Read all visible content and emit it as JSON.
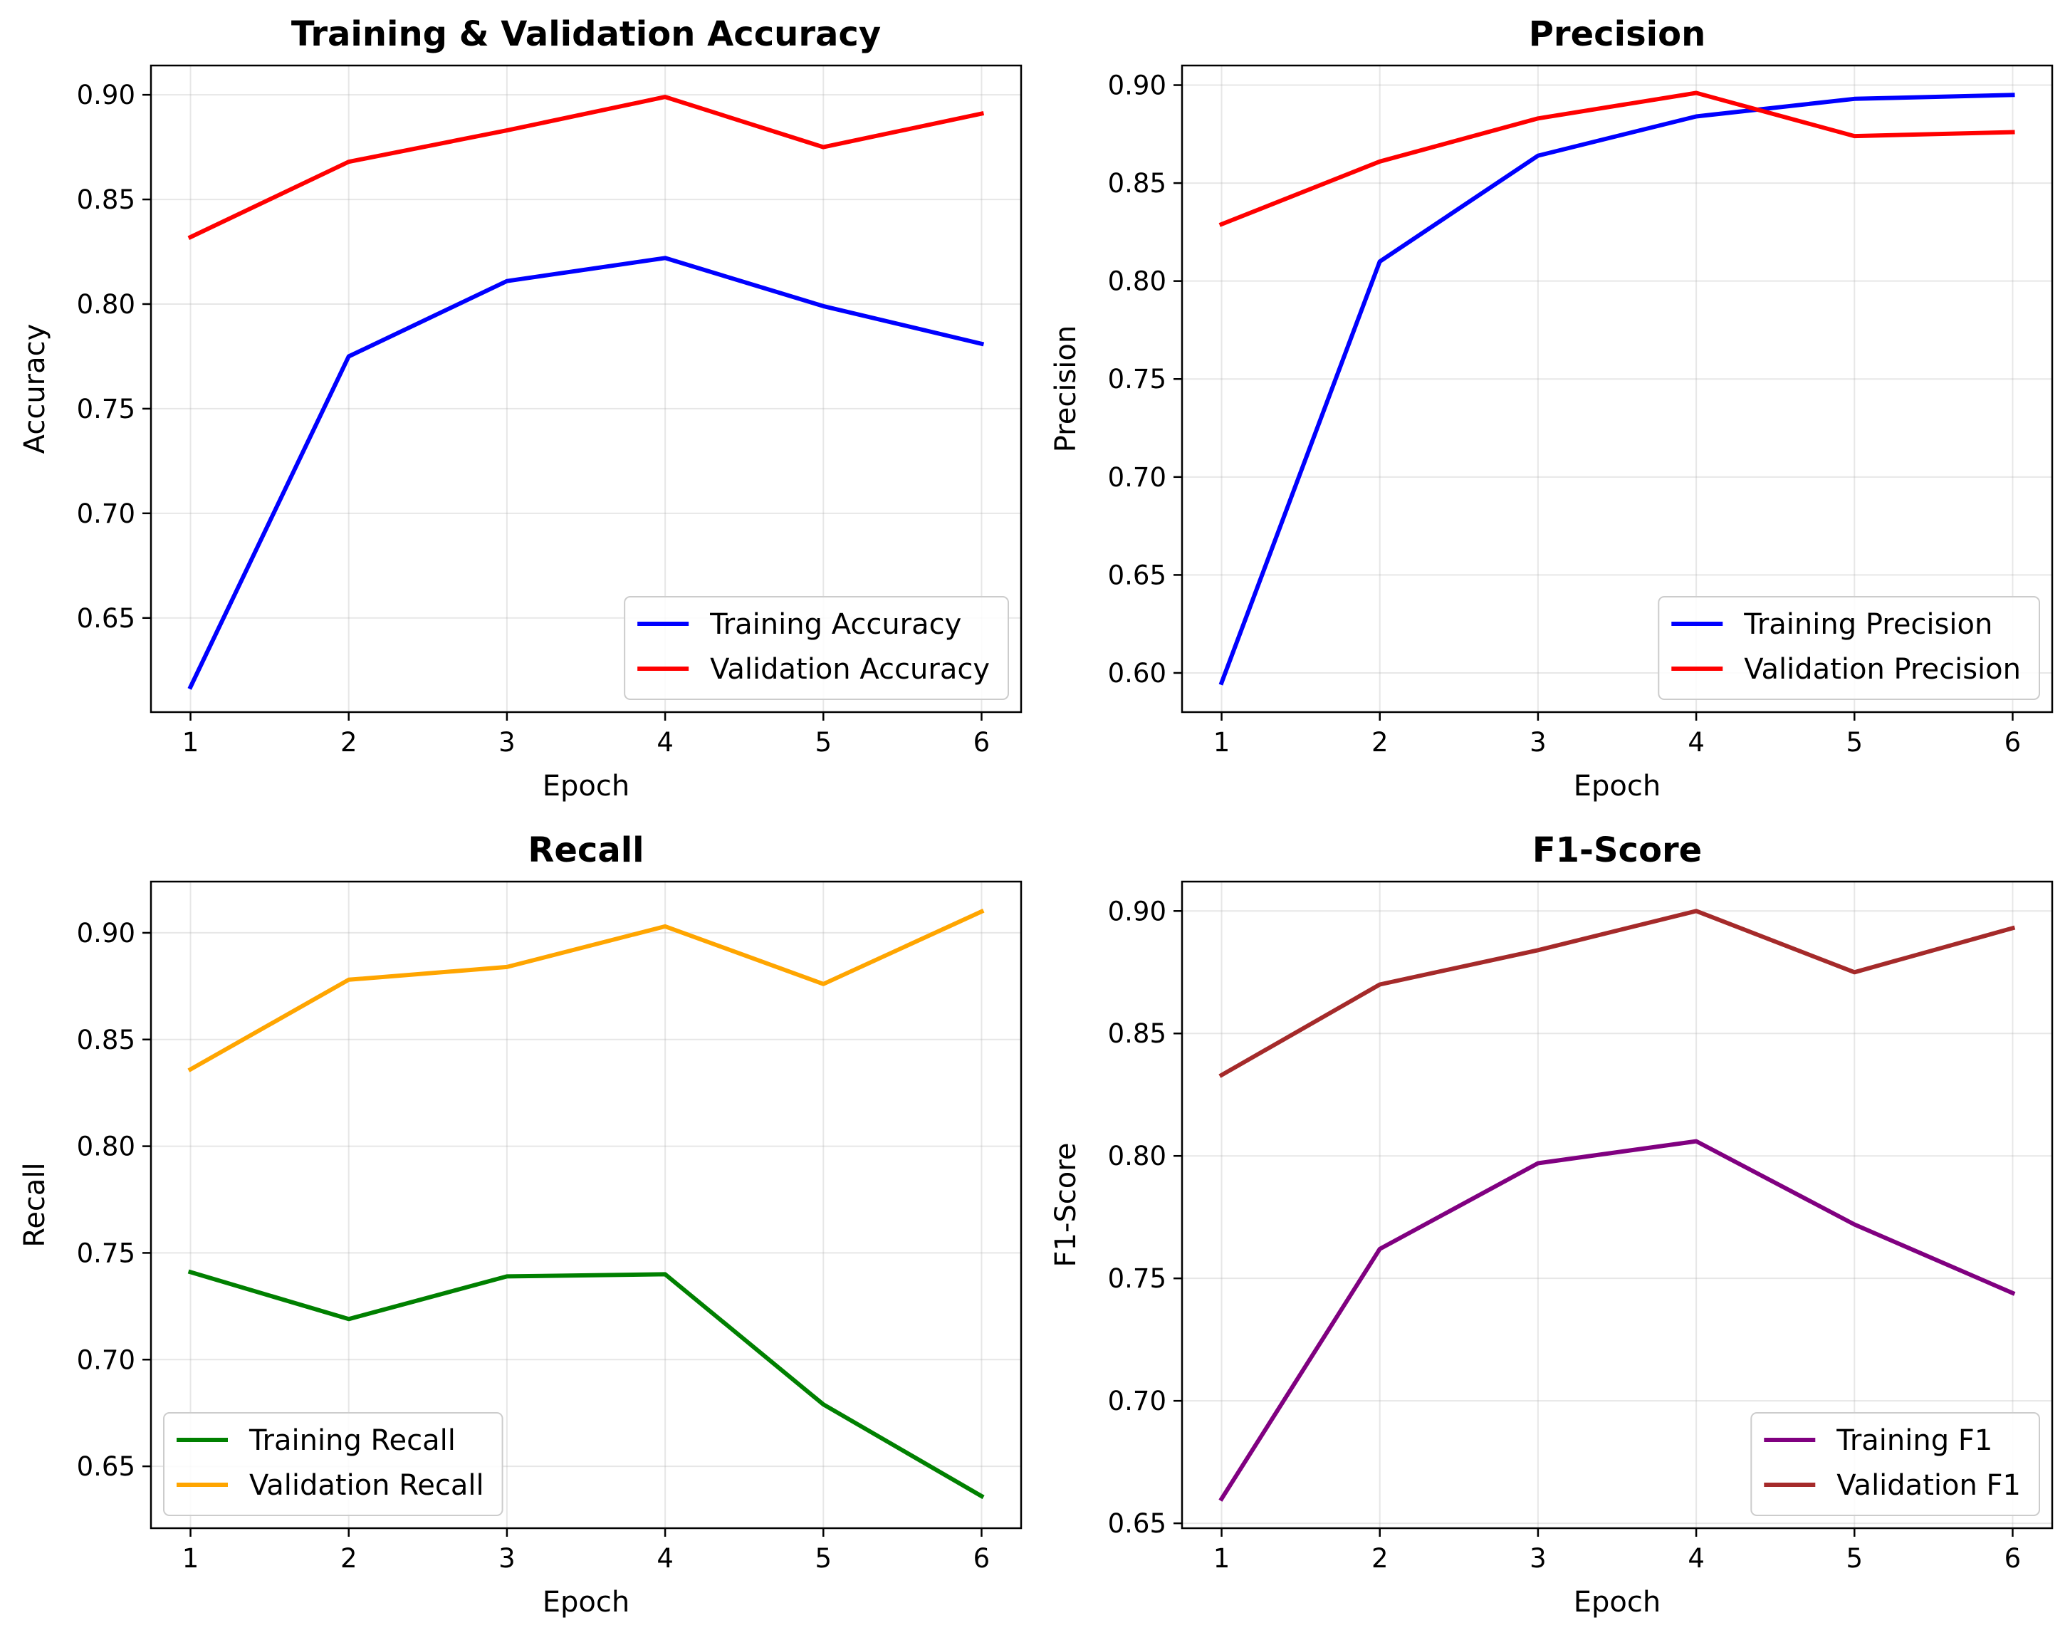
{
  "chart_data": [
    {
      "type": "line",
      "title": "Training & Validation Accuracy",
      "xlabel": "Epoch",
      "ylabel": "Accuracy",
      "x": [
        1,
        2,
        3,
        4,
        5,
        6
      ],
      "xlim": [
        0.75,
        6.25
      ],
      "ylim": [
        0.605,
        0.914
      ],
      "xticks": [
        1,
        2,
        3,
        4,
        5,
        6
      ],
      "yticks": [
        0.65,
        0.7,
        0.75,
        0.8,
        0.85,
        0.9
      ],
      "grid": true,
      "legend_position": "lower-right",
      "series": [
        {
          "name": "Training Accuracy",
          "color": "#0000ff",
          "values": [
            0.617,
            0.775,
            0.811,
            0.822,
            0.799,
            0.781
          ]
        },
        {
          "name": "Validation Accuracy",
          "color": "#ff0000",
          "values": [
            0.832,
            0.868,
            0.883,
            0.899,
            0.875,
            0.891
          ]
        }
      ]
    },
    {
      "type": "line",
      "title": "Precision",
      "xlabel": "Epoch",
      "ylabel": "Precision",
      "x": [
        1,
        2,
        3,
        4,
        5,
        6
      ],
      "xlim": [
        0.75,
        6.25
      ],
      "ylim": [
        0.58,
        0.91
      ],
      "xticks": [
        1,
        2,
        3,
        4,
        5,
        6
      ],
      "yticks": [
        0.6,
        0.65,
        0.7,
        0.75,
        0.8,
        0.85,
        0.9
      ],
      "grid": true,
      "legend_position": "lower-right",
      "series": [
        {
          "name": "Training Precision",
          "color": "#0000ff",
          "values": [
            0.595,
            0.81,
            0.864,
            0.884,
            0.893,
            0.895
          ]
        },
        {
          "name": "Validation Precision",
          "color": "#ff0000",
          "values": [
            0.829,
            0.861,
            0.883,
            0.896,
            0.874,
            0.876
          ]
        }
      ]
    },
    {
      "type": "line",
      "title": "Recall",
      "xlabel": "Epoch",
      "ylabel": "Recall",
      "x": [
        1,
        2,
        3,
        4,
        5,
        6
      ],
      "xlim": [
        0.75,
        6.25
      ],
      "ylim": [
        0.621,
        0.924
      ],
      "xticks": [
        1,
        2,
        3,
        4,
        5,
        6
      ],
      "yticks": [
        0.65,
        0.7,
        0.75,
        0.8,
        0.85,
        0.9
      ],
      "grid": true,
      "legend_position": "lower-left",
      "series": [
        {
          "name": "Training Recall",
          "color": "#008000",
          "values": [
            0.741,
            0.719,
            0.739,
            0.74,
            0.679,
            0.636
          ]
        },
        {
          "name": "Validation Recall",
          "color": "#ffa500",
          "values": [
            0.836,
            0.878,
            0.884,
            0.903,
            0.876,
            0.91
          ]
        }
      ]
    },
    {
      "type": "line",
      "title": "F1-Score",
      "xlabel": "Epoch",
      "ylabel": "F1-Score",
      "x": [
        1,
        2,
        3,
        4,
        5,
        6
      ],
      "xlim": [
        0.75,
        6.25
      ],
      "ylim": [
        0.648,
        0.912
      ],
      "xticks": [
        1,
        2,
        3,
        4,
        5,
        6
      ],
      "yticks": [
        0.65,
        0.7,
        0.75,
        0.8,
        0.85,
        0.9
      ],
      "grid": true,
      "legend_position": "lower-right",
      "series": [
        {
          "name": "Training F1",
          "color": "#800080",
          "values": [
            0.66,
            0.762,
            0.797,
            0.806,
            0.772,
            0.744
          ]
        },
        {
          "name": "Validation F1",
          "color": "#a52a2a",
          "values": [
            0.833,
            0.87,
            0.884,
            0.9,
            0.875,
            0.893
          ]
        }
      ]
    }
  ]
}
